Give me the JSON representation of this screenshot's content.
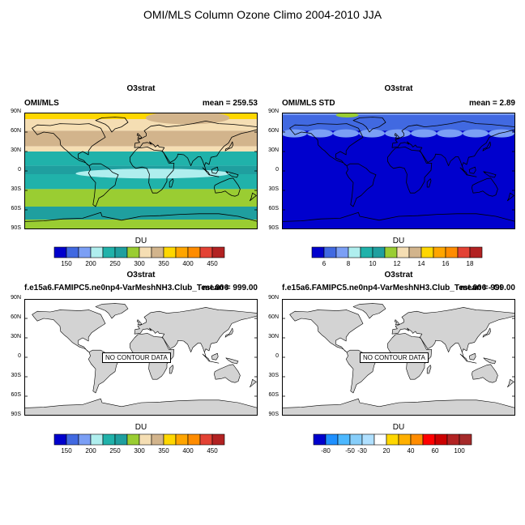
{
  "figure": {
    "title": "OMI/MLS Column Ozone Climo 2004-2010 JJA"
  },
  "colors": {
    "ocean_low": "#0000cd",
    "land_fill": "#d3d3d3",
    "frame": "#000000"
  },
  "panels": [
    {
      "id": "top-left",
      "center_title": "O3strat",
      "left_title": "OMI/MLS",
      "right_title": "mean = 259.53",
      "lat_labels": [
        "90N",
        "60N",
        "30N",
        "0",
        "30S",
        "60S",
        "90S"
      ],
      "colorbar": {
        "label": "DU",
        "colors": [
          "#0000cd",
          "#4169e1",
          "#7b9ff5",
          "#afeeee",
          "#20b2aa",
          "#1f9f9f",
          "#9acd32",
          "#f5deb3",
          "#d2b48c",
          "#ffd700",
          "#ffa500",
          "#ff8c00",
          "#e34234",
          "#b22222"
        ],
        "ticks": [
          "150",
          "200",
          "250",
          "300",
          "350",
          "400",
          "450"
        ],
        "tick_after_box": [
          1,
          3,
          5,
          7,
          9,
          11,
          13
        ]
      }
    },
    {
      "id": "top-right",
      "center_title": "O3strat",
      "left_title": "OMI/MLS STD",
      "right_title": "mean =   2.89",
      "lat_labels": [
        "90N",
        "60N",
        "30N",
        "0",
        "30S",
        "60S",
        "90S"
      ],
      "colorbar": {
        "label": "DU",
        "colors": [
          "#0000cd",
          "#4169e1",
          "#7b9ff5",
          "#afeeee",
          "#20b2aa",
          "#1f9f9f",
          "#9acd32",
          "#f5deb3",
          "#d2b48c",
          "#ffd700",
          "#ffa500",
          "#ff8c00",
          "#e34234",
          "#b22222"
        ],
        "ticks": [
          "6",
          "8",
          "10",
          "12",
          "14",
          "16",
          "18"
        ],
        "tick_after_box": [
          1,
          3,
          5,
          7,
          9,
          11,
          13
        ]
      }
    },
    {
      "id": "bottom-left",
      "center_title": "O3strat",
      "left_title": "f.e15a6.FAMIPC5.ne0np4-VarMeshNH3.Club_Test.006",
      "right_title": "mean = 999.00",
      "note": "NO CONTOUR DATA",
      "lat_labels": [
        "90N",
        "60N",
        "30N",
        "0",
        "30S",
        "60S",
        "90S"
      ],
      "colorbar": {
        "label": "DU",
        "colors": [
          "#0000cd",
          "#4169e1",
          "#7b9ff5",
          "#afeeee",
          "#20b2aa",
          "#1f9f9f",
          "#9acd32",
          "#f5deb3",
          "#d2b48c",
          "#ffd700",
          "#ffa500",
          "#ff8c00",
          "#e34234",
          "#b22222"
        ],
        "ticks": [
          "150",
          "200",
          "250",
          "300",
          "350",
          "400",
          "450"
        ],
        "tick_after_box": [
          1,
          3,
          5,
          7,
          9,
          11,
          13
        ]
      }
    },
    {
      "id": "bottom-right",
      "center_title": "O3strat",
      "left_title": "f.e15a6.FAMIPC5.ne0np4-VarMeshNH3.Club_Test.006 - OI",
      "right_title": "mean = 999.00",
      "note": "NO CONTOUR DATA",
      "lat_labels": [
        "90N",
        "60N",
        "30N",
        "0",
        "30S",
        "60S",
        "90S"
      ],
      "colorbar": {
        "label": "DU",
        "colors": [
          "#0000cd",
          "#1e90ff",
          "#4db8ff",
          "#87cefa",
          "#b0e0ff",
          "#ffffff",
          "#ffd700",
          "#ffb000",
          "#ff8c00",
          "#ff0000",
          "#cc0000",
          "#b22222",
          "#a52a2a"
        ],
        "ticks": [
          "-80",
          "-50",
          "-30",
          "20",
          "40",
          "60",
          "100"
        ],
        "tick_after_box": [
          1,
          3,
          4,
          6,
          8,
          10,
          12
        ]
      }
    }
  ]
}
